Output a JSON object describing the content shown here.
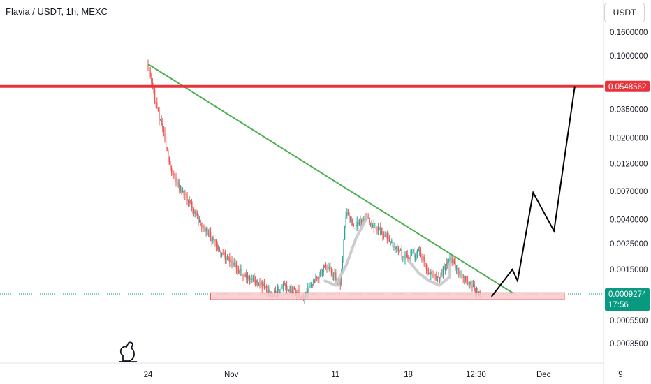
{
  "header": {
    "title": "Flavia / USDT, 1h, MEXC",
    "currency_button": "USDT"
  },
  "colors": {
    "up": "#26a69a",
    "down": "#ef5350",
    "resistance": "#e8323c",
    "trendline": "#4caf50",
    "support_fill": "#f8c9cc",
    "support_stroke": "#e8323c",
    "current_price": "#089981",
    "projection": "#000000",
    "pattern": "#c8c8c8"
  },
  "chart_data": {
    "type": "candlestick",
    "symbol": "Flavia / USDT",
    "interval": "1h",
    "exchange": "MEXC",
    "y_scale": "log",
    "ylim": [
      0.00029,
      0.29
    ],
    "y_ticks": [
      {
        "value": 0.16,
        "label": "0.1600000"
      },
      {
        "value": 0.1,
        "label": "0.1000000"
      },
      {
        "value": 0.035,
        "label": "0.0350000"
      },
      {
        "value": 0.02,
        "label": "0.0200000"
      },
      {
        "value": 0.012,
        "label": "0.0120000"
      },
      {
        "value": 0.007,
        "label": "0.0070000"
      },
      {
        "value": 0.004,
        "label": "0.0040000"
      },
      {
        "value": 0.0025,
        "label": "0.0025000"
      },
      {
        "value": 0.0015,
        "label": "0.0015000"
      },
      {
        "value": 0.00055,
        "label": "0.0005500"
      },
      {
        "value": 0.00035,
        "label": "0.0003500"
      }
    ],
    "x_ticks": [
      "24",
      "Nov",
      "11",
      "18",
      "12:30",
      "Dec",
      "9"
    ],
    "price_path": [
      [
        "Oct 24",
        0.085
      ],
      [
        "Oct 24",
        0.06
      ],
      [
        "Oct 24",
        0.042
      ],
      [
        "Oct 25",
        0.032
      ],
      [
        "Oct 25",
        0.022
      ],
      [
        "Oct 26",
        0.012
      ],
      [
        "Oct 26",
        0.009
      ],
      [
        "Oct 27",
        0.0075
      ],
      [
        "Oct 28",
        0.0055
      ],
      [
        "Oct 29",
        0.0038
      ],
      [
        "Oct 30",
        0.0028
      ],
      [
        "Oct 31",
        0.0021
      ],
      [
        "Nov 1",
        0.0017
      ],
      [
        "Nov 2",
        0.0014
      ],
      [
        "Nov 4",
        0.0011
      ],
      [
        "Nov 5",
        0.00092
      ],
      [
        "Nov 6",
        0.0011
      ],
      [
        "Nov 7",
        0.00098
      ],
      [
        "Nov 8",
        0.00088
      ],
      [
        "Nov 9",
        0.0012
      ],
      [
        "Nov 10",
        0.0016
      ],
      [
        "Nov 11",
        0.0013
      ],
      [
        "Nov 11",
        0.0011
      ],
      [
        "Nov 12",
        0.0045
      ],
      [
        "Nov 13",
        0.0035
      ],
      [
        "Nov 14",
        0.0043
      ],
      [
        "Nov 15",
        0.0033
      ],
      [
        "Nov 16",
        0.0028
      ],
      [
        "Nov 17",
        0.0022
      ],
      [
        "Nov 18",
        0.0018
      ],
      [
        "Nov 19",
        0.0022
      ],
      [
        "Nov 20",
        0.0014
      ],
      [
        "Nov 21",
        0.0013
      ],
      [
        "Nov 22",
        0.0019
      ],
      [
        "Nov 23",
        0.0014
      ],
      [
        "Nov 24",
        0.0011
      ],
      [
        "Nov 25",
        0.00093
      ]
    ],
    "resistance_level": {
      "value": 0.0548562,
      "label": "0.0548562"
    },
    "current_price": {
      "value": 0.0009274,
      "label": "0.0009274",
      "countdown": "17:56"
    },
    "trendline": {
      "from": [
        "Oct 24",
        0.085
      ],
      "to": [
        "Nov 28",
        0.00095
      ]
    },
    "support_zone": {
      "from": "Oct 30",
      "to": "Dec 3",
      "low": 0.00083,
      "high": 0.00095
    },
    "projection": [
      [
        "Nov 26",
        0.00088
      ],
      [
        "Nov 28",
        0.0015
      ],
      [
        "Nov 28",
        0.0012
      ],
      [
        "Nov 30",
        0.0068
      ],
      [
        "Dec 2",
        0.0032
      ],
      [
        "Dec 4",
        0.055
      ]
    ]
  }
}
